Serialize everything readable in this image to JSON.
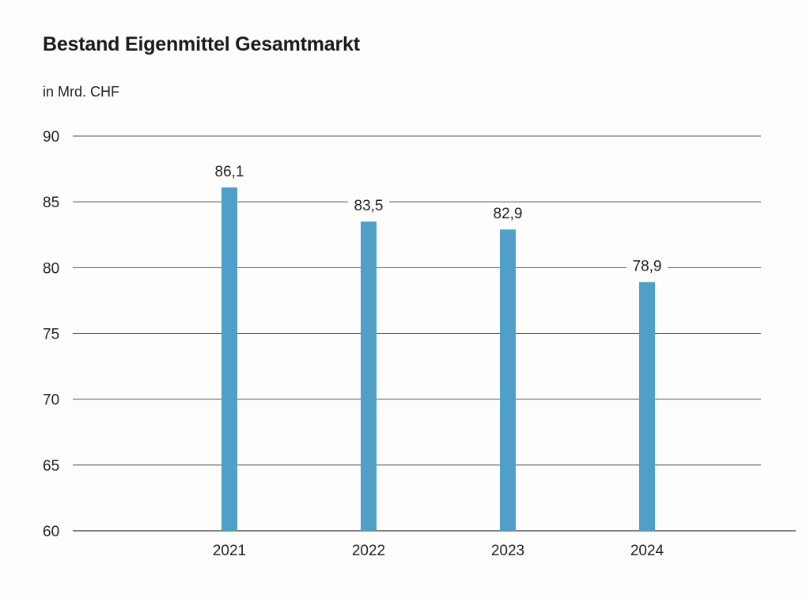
{
  "chart_data": {
    "type": "bar",
    "title": "Bestand Eigenmittel Gesamtmarkt",
    "ylabel": "in Mrd. CHF",
    "xlabel": "",
    "categories": [
      "2021",
      "2022",
      "2023",
      "2024"
    ],
    "values": [
      86.1,
      83.5,
      82.9,
      78.9
    ],
    "value_labels": [
      "86,1",
      "83,5",
      "82,9",
      "78,9"
    ],
    "ylim": [
      60,
      90
    ],
    "yticks": [
      90,
      85,
      80,
      75,
      70,
      65,
      60
    ],
    "grid": true,
    "legend": "none",
    "bar_color": "#4f9fc8",
    "grid_color": "#555555"
  }
}
